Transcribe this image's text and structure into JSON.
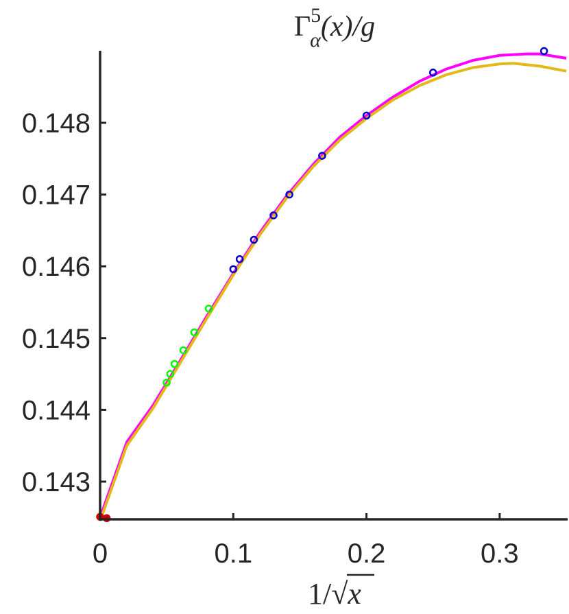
{
  "chart_data": {
    "type": "line",
    "title": "Γ^5_α(x)/g",
    "title_parts": {
      "base": "Γ",
      "sup": "5",
      "sub": "α",
      "rest": "(x)/g"
    },
    "xlabel": "1/√x",
    "xlabel_parts": {
      "prefix": "1/",
      "radical": "√",
      "var": "x"
    },
    "ylabel": "",
    "xlim": [
      0,
      0.35
    ],
    "ylim": [
      142.5,
      149.0
    ],
    "y_scale_note": "values ×0.001",
    "x_ticks": [
      0,
      0.1,
      0.2,
      0.3
    ],
    "x_tick_labels": [
      "0",
      "0.1",
      "0.2",
      "0.3"
    ],
    "y_ticks": [
      143,
      144,
      145,
      146,
      147,
      148
    ],
    "y_tick_labels": [
      "0.143",
      "0.144",
      "0.145",
      "0.146",
      "0.147",
      "0.148"
    ],
    "grid": false,
    "box": "left-bottom axes only",
    "series": [
      {
        "kind": "curve",
        "color": "#ff00ff",
        "x": [
          0,
          0.02,
          0.04,
          0.06,
          0.08,
          0.1,
          0.12,
          0.14,
          0.16,
          0.18,
          0.2,
          0.22,
          0.24,
          0.26,
          0.28,
          0.3,
          0.32,
          0.33,
          0.35
        ],
        "y": [
          142.5,
          143.55,
          144.07,
          144.68,
          145.3,
          145.9,
          146.47,
          146.98,
          147.42,
          147.8,
          148.1,
          148.36,
          148.58,
          148.75,
          148.87,
          148.94,
          148.96,
          148.96,
          148.9
        ]
      },
      {
        "kind": "curve",
        "color": "#e3b81a",
        "x": [
          0,
          0.02,
          0.04,
          0.06,
          0.08,
          0.1,
          0.12,
          0.14,
          0.16,
          0.18,
          0.2,
          0.22,
          0.24,
          0.26,
          0.28,
          0.3,
          0.31,
          0.33,
          0.35
        ],
        "y": [
          142.45,
          143.5,
          144.03,
          144.65,
          145.27,
          145.88,
          146.44,
          146.95,
          147.39,
          147.76,
          148.06,
          148.32,
          148.52,
          148.67,
          148.77,
          148.82,
          148.83,
          148.79,
          148.72
        ]
      },
      {
        "kind": "markers",
        "color": "#00ff00",
        "x": [
          0.05,
          0.0527,
          0.0559,
          0.0625,
          0.0707,
          0.0816
        ],
        "y": [
          144.38,
          144.5,
          144.64,
          144.83,
          145.08,
          145.41
        ]
      },
      {
        "kind": "markers",
        "color": "#0000cc",
        "x": [
          0.1,
          0.1048,
          0.1155,
          0.1302,
          0.1421,
          0.1667,
          0.2,
          0.25,
          0.3333
        ],
        "y": [
          145.96,
          146.1,
          146.37,
          146.71,
          147.0,
          147.54,
          148.1,
          148.7,
          149.0
        ]
      },
      {
        "kind": "markers",
        "color": "#cc0000",
        "x": [
          0,
          0.005
        ],
        "y": [
          142.51,
          142.49
        ]
      }
    ]
  }
}
